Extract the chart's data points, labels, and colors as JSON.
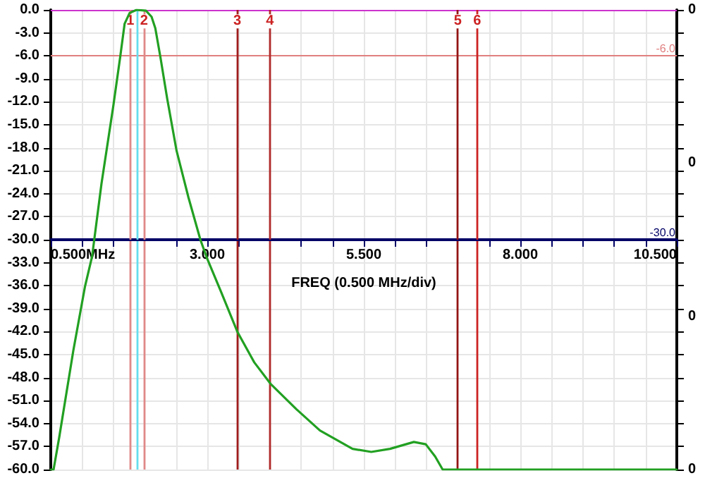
{
  "chart_data": {
    "type": "line",
    "xlabel": "FREQ (0.500 MHz/div)",
    "xlim": [
      0.5,
      10.5
    ],
    "xticks": [
      {
        "value": 0.5,
        "label": "0.500MHz"
      },
      {
        "value": 1,
        "label": null
      },
      {
        "value": 1.5,
        "label": null
      },
      {
        "value": 2,
        "label": null
      },
      {
        "value": 2.5,
        "label": null
      },
      {
        "value": 3,
        "label": "3.000"
      },
      {
        "value": 3.5,
        "label": null
      },
      {
        "value": 4,
        "label": null
      },
      {
        "value": 4.5,
        "label": null
      },
      {
        "value": 5,
        "label": null
      },
      {
        "value": 5.5,
        "label": "5.500"
      },
      {
        "value": 6,
        "label": null
      },
      {
        "value": 6.5,
        "label": null
      },
      {
        "value": 7,
        "label": null
      },
      {
        "value": 7.5,
        "label": null
      },
      {
        "value": 8,
        "label": "8.000"
      },
      {
        "value": 8.5,
        "label": null
      },
      {
        "value": 9,
        "label": null
      },
      {
        "value": 9.5,
        "label": null
      },
      {
        "value": 10,
        "label": null
      },
      {
        "value": 10.5,
        "label": "10.500"
      }
    ],
    "ylim": [
      -60,
      0
    ],
    "yticks": [
      {
        "value": 0,
        "label": "0.0"
      },
      {
        "value": -3,
        "label": "-3.0"
      },
      {
        "value": -6,
        "label": "-6.0"
      },
      {
        "value": -9,
        "label": "-9.0"
      },
      {
        "value": -12,
        "label": "-12.0"
      },
      {
        "value": -15,
        "label": "-15.0"
      },
      {
        "value": -18,
        "label": "-18.0"
      },
      {
        "value": -21,
        "label": "-21.0"
      },
      {
        "value": -24,
        "label": "-24.0"
      },
      {
        "value": -27,
        "label": "-27.0"
      },
      {
        "value": -30,
        "label": "-30.0"
      },
      {
        "value": -33,
        "label": "-33.0"
      },
      {
        "value": -36,
        "label": "-36.0"
      },
      {
        "value": -39,
        "label": "-39.0"
      },
      {
        "value": -42,
        "label": "-42.0"
      },
      {
        "value": -45,
        "label": "-45.0"
      },
      {
        "value": -48,
        "label": "-48.0"
      },
      {
        "value": -51,
        "label": "-51.0"
      },
      {
        "value": -54,
        "label": "-54.0"
      },
      {
        "value": -57,
        "label": "-57.0"
      },
      {
        "value": -60,
        "label": "-60.0"
      }
    ],
    "annotations": [
      {
        "text": "1",
        "x": 1.77,
        "y": -1.5
      },
      {
        "text": "2",
        "x": 1.99,
        "y": -1.5
      },
      {
        "text": "3",
        "x": 3.48,
        "y": -1.5
      },
      {
        "text": "4",
        "x": 4.0,
        "y": -1.5
      },
      {
        "text": "5",
        "x": 7.0,
        "y": -1.5
      },
      {
        "text": "6",
        "x": 7.31,
        "y": -1.5
      },
      "0",
      "0",
      "0",
      "0"
    ],
    "grid": true,
    "marker": "none",
    "line_style": "solid",
    "series": [
      {
        "color": "#22a022",
        "x": [
          0.5,
          0.545,
          0.635,
          0.86,
          1.047,
          1.16,
          1.31,
          1.5,
          1.61,
          1.68,
          1.76,
          1.87,
          2.02,
          2.11,
          2.17,
          2.25,
          2.36,
          2.51,
          2.7,
          2.89,
          3.0,
          3.22,
          3.48,
          3.75,
          4.01,
          4.42,
          4.8,
          5.32,
          5.62,
          5.92,
          6.3,
          6.49,
          6.64,
          6.76,
          10.5
        ],
        "values": [
          -60,
          -60,
          -55.8,
          -44.5,
          -36.1,
          -32.2,
          -22.7,
          -12.5,
          -6.1,
          -1.8,
          -0.4,
          0,
          -0.1,
          -0.9,
          -2.4,
          -6.1,
          -11.6,
          -18.4,
          -24.5,
          -30,
          -32.5,
          -36.8,
          -42,
          -46,
          -48.8,
          -52.1,
          -54.9,
          -57.3,
          -57.7,
          -57.3,
          -56.4,
          -56.7,
          -58.3,
          -60,
          -60
        ]
      }
    ],
    "ref_lines": [
      {
        "axis": "y",
        "value": 0,
        "label": null,
        "color": "#cc33cc"
      },
      {
        "axis": "y",
        "value": -6,
        "label": "-6.0",
        "color": "#e08080"
      },
      {
        "axis": "x",
        "value": 1.77,
        "label": null,
        "color": "#e08888"
      },
      {
        "axis": "x",
        "value": 1.89,
        "label": null,
        "color": "#66ddee"
      },
      {
        "axis": "x",
        "value": 1.99,
        "label": null,
        "color": "#e08888"
      },
      {
        "axis": "x",
        "value": 3.48,
        "label": null,
        "color": "#a01c1c"
      },
      {
        "axis": "x",
        "value": 4.0,
        "label": null,
        "color": "#b02a2a"
      },
      {
        "axis": "x",
        "value": 7.0,
        "label": null,
        "color": "#941414"
      },
      {
        "axis": "x",
        "value": 7.31,
        "label": null,
        "color": "#cc2222"
      },
      {
        "axis": "y",
        "value": -30,
        "label": "-30.0",
        "color": "#000066"
      }
    ]
  }
}
